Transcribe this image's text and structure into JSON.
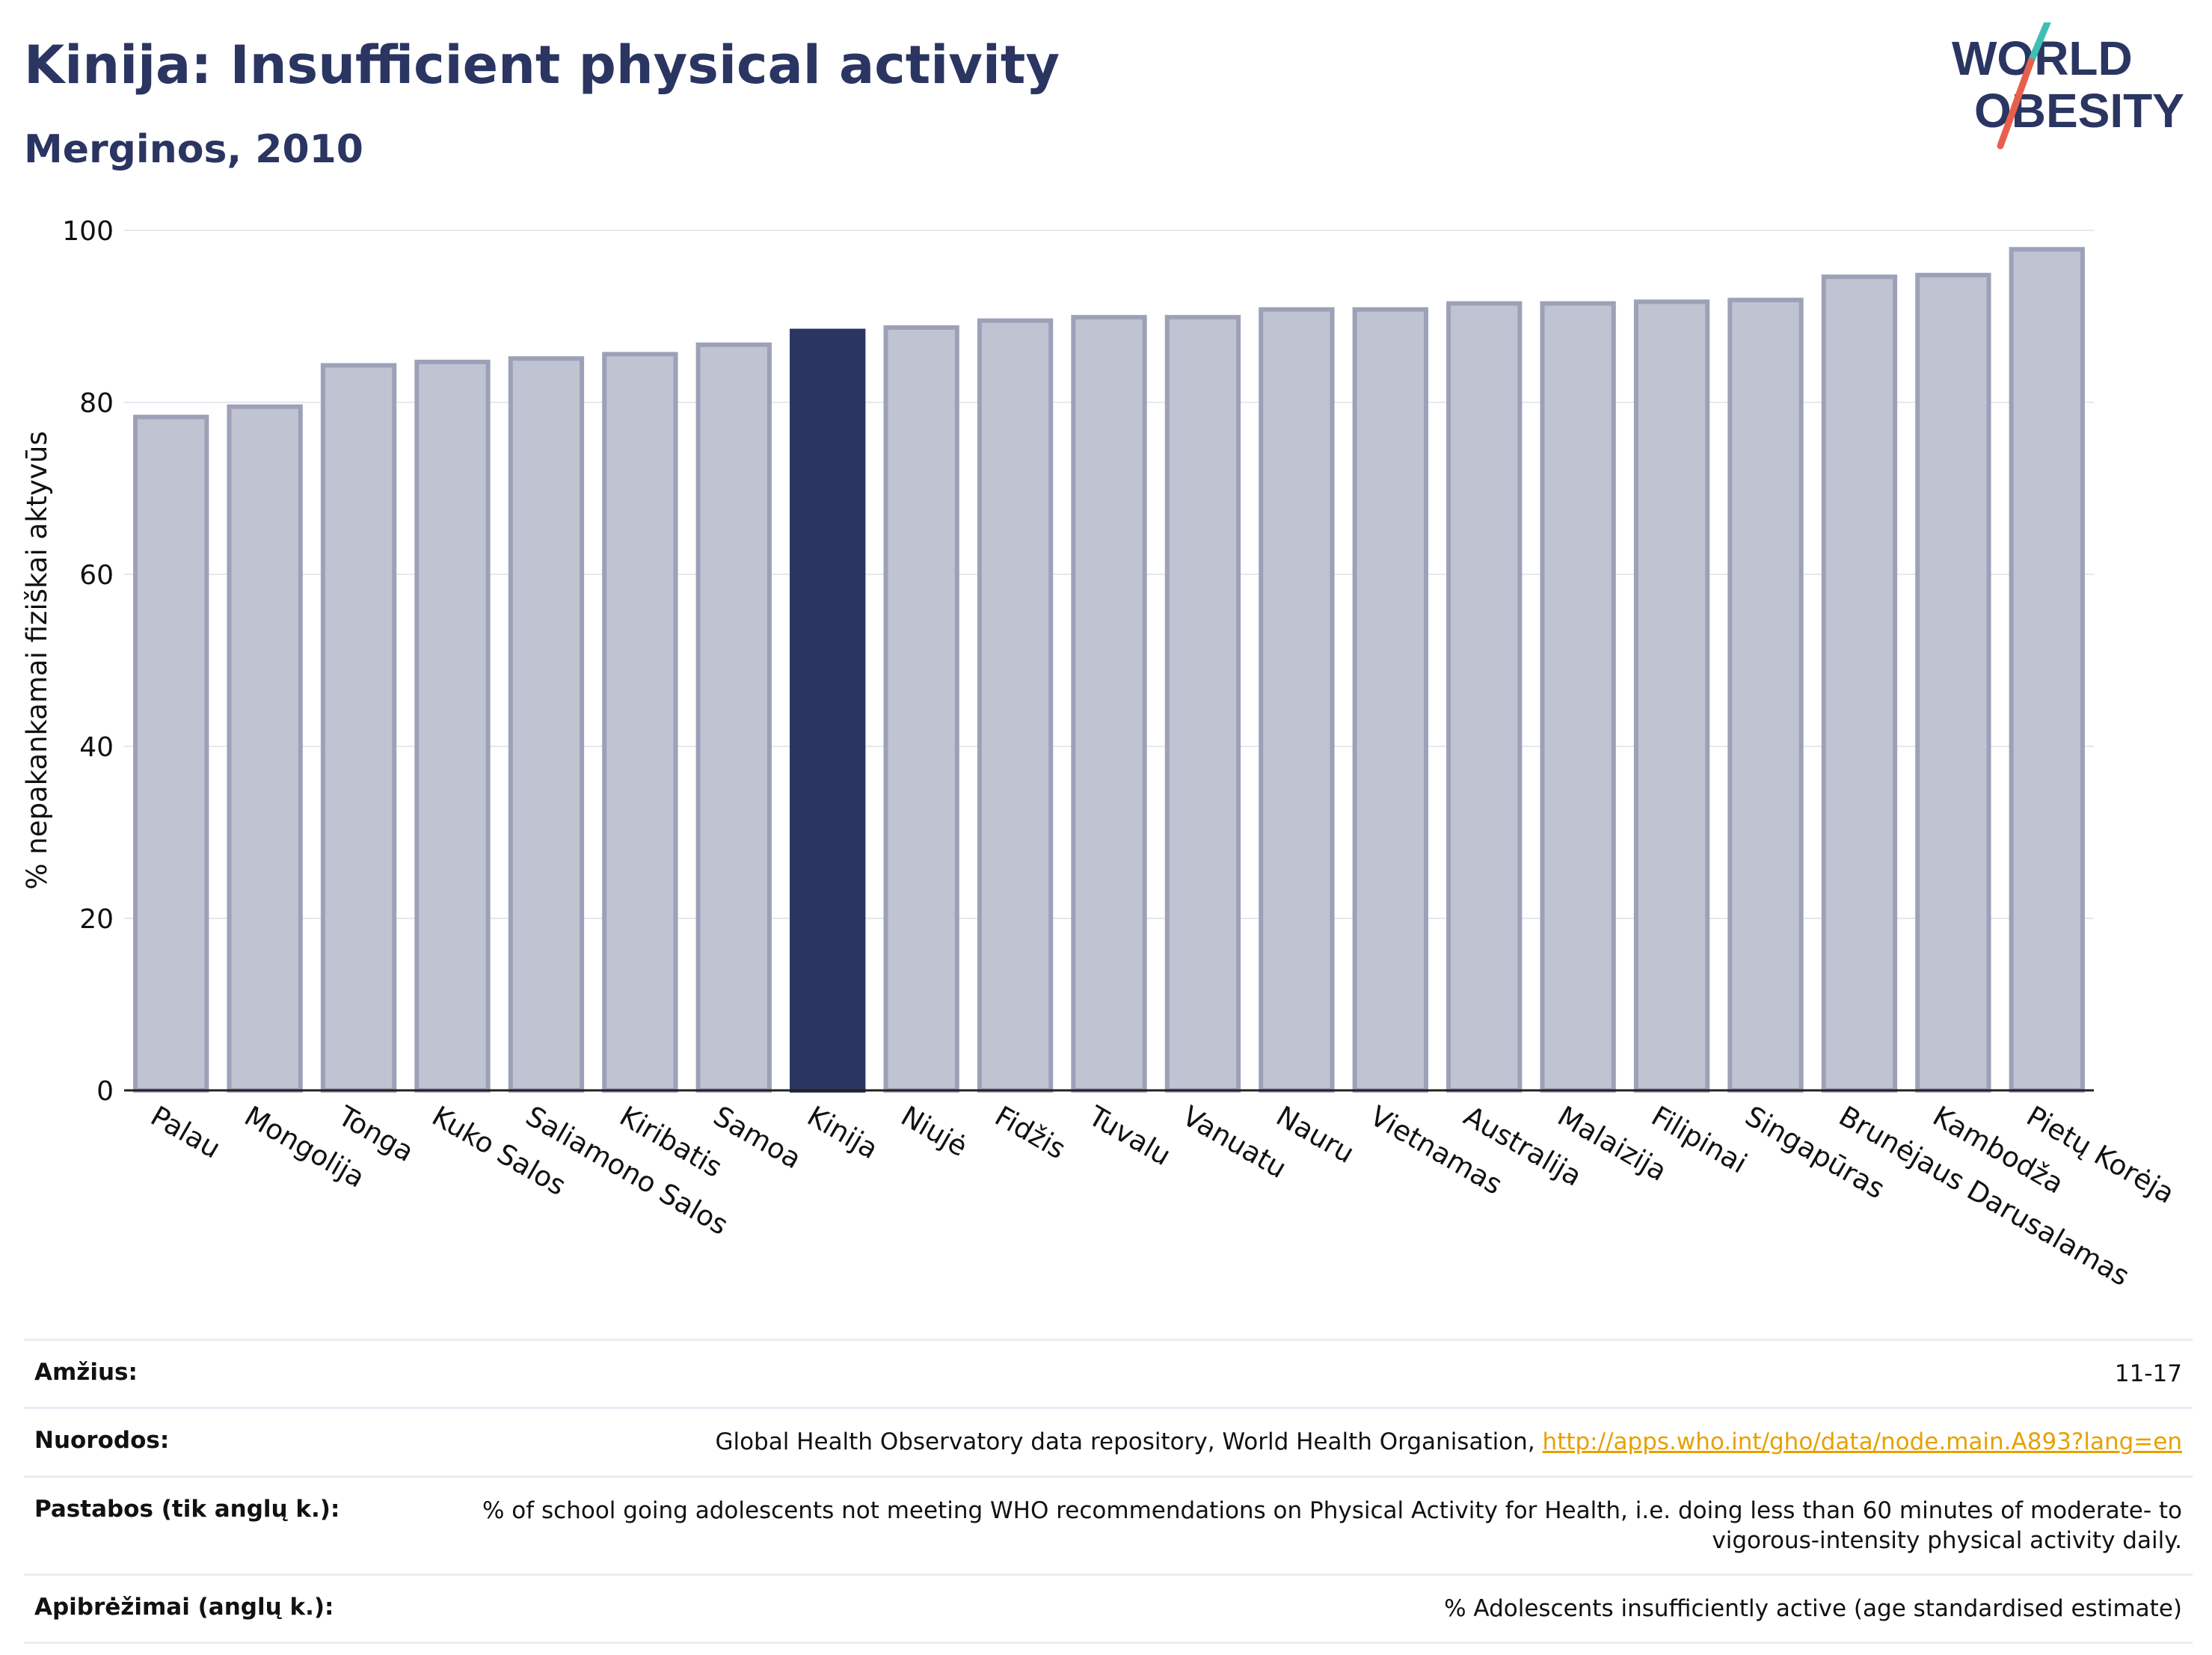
{
  "header": {
    "title": "Kinija: Insufficient physical activity",
    "subtitle": "Merginos, 2010",
    "logo_line1": "WORLD",
    "logo_line2": "OBESITY"
  },
  "colors": {
    "highlight": "#2b3561",
    "bar": "#c0c3d1",
    "bar_outline": "#9da1b8",
    "title": "#2b3561",
    "link": "#e6a100"
  },
  "chart_data": {
    "type": "bar",
    "ylabel": "% nepakankamai fiziškai aktyvūs",
    "ylim": [
      0,
      100
    ],
    "yticks": [
      0,
      20,
      40,
      60,
      80,
      100
    ],
    "grid": true,
    "highlight": "Kinija",
    "categories": [
      "Palau",
      "Mongolija",
      "Tonga",
      "Kuko Salos",
      "Saliamono Salos",
      "Kiribatis",
      "Samoa",
      "Kinija",
      "Niujė",
      "Fidžis",
      "Tuvalu",
      "Vanuatu",
      "Nauru",
      "Vietnamas",
      "Australija",
      "Malaizija",
      "Filipinai",
      "Singapūras",
      "Brunėjaus Darusalamas",
      "Kambodža",
      "Pietų Korėja"
    ],
    "values": [
      78.3,
      79.5,
      84.3,
      84.7,
      85.1,
      85.6,
      86.7,
      88.3,
      88.7,
      89.5,
      89.9,
      89.9,
      90.8,
      90.8,
      91.5,
      91.5,
      91.7,
      91.9,
      94.6,
      94.8,
      97.8
    ]
  },
  "footer": {
    "rows": [
      {
        "label": "Amžius:",
        "value": "11-17"
      },
      {
        "label": "Nuorodos:",
        "value": "Global Health Observatory data repository, World Health Organisation, ",
        "link": "http://apps.who.int/gho/data/node.main.A893?lang=en"
      },
      {
        "label": "Pastabos (tik anglų k.):",
        "value": "% of school going adolescents not meeting WHO recommendations on Physical Activity for Health, i.e. doing less than 60 minutes of moderate- to vigorous-intensity physical activity daily."
      },
      {
        "label": "Apibrėžimai (anglų k.):",
        "value": "% Adolescents insufficiently active (age standardised estimate)"
      }
    ]
  }
}
